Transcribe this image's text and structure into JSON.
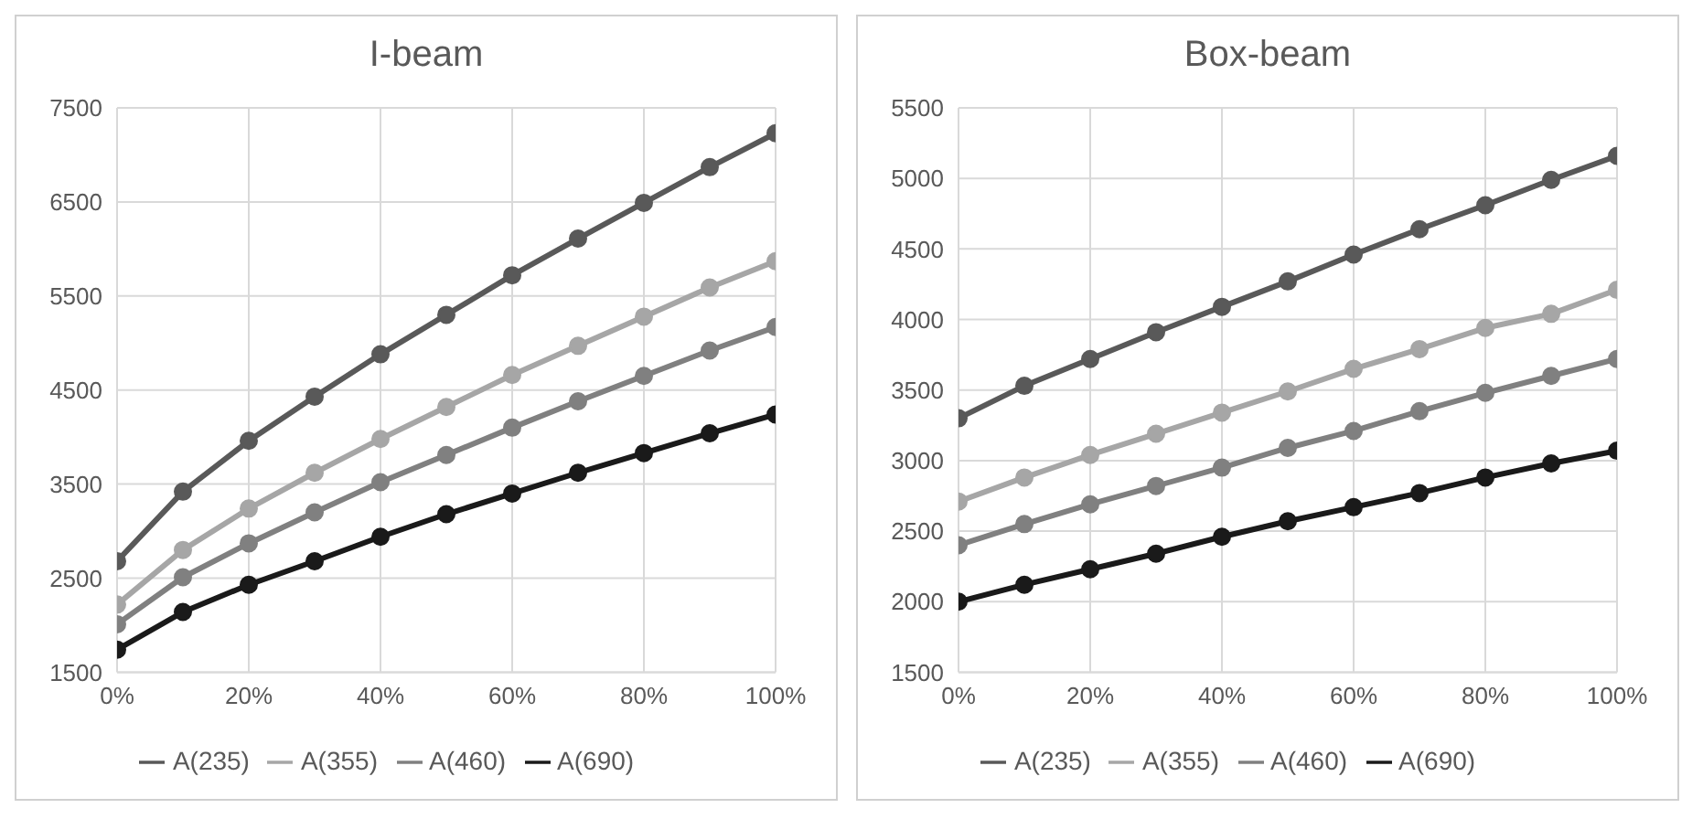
{
  "chart_data": [
    {
      "type": "line",
      "title": "I-beam",
      "x": [
        0,
        10,
        20,
        30,
        40,
        50,
        60,
        70,
        80,
        90,
        100
      ],
      "xlim": [
        0,
        100
      ],
      "xticks": [
        {
          "value": 0,
          "label": "0%"
        },
        {
          "value": 20,
          "label": "20%"
        },
        {
          "value": 40,
          "label": "40%"
        },
        {
          "value": 60,
          "label": "60%"
        },
        {
          "value": 80,
          "label": "80%"
        },
        {
          "value": 100,
          "label": "100%"
        }
      ],
      "ylim": [
        1500,
        7500
      ],
      "yticks": [
        1500,
        2500,
        3500,
        4500,
        5500,
        6500,
        7500
      ],
      "grid": true,
      "legend": "bottom",
      "marker": "circle",
      "line_style": "solid",
      "series": [
        {
          "name": "A(235)",
          "color": "#595959",
          "values": [
            2680,
            3420,
            3960,
            4430,
            4880,
            5300,
            5720,
            6110,
            6490,
            6870,
            7230
          ]
        },
        {
          "name": "A(355)",
          "color": "#a6a6a6",
          "values": [
            2220,
            2800,
            3240,
            3620,
            3980,
            4320,
            4660,
            4970,
            5280,
            5590,
            5870
          ]
        },
        {
          "name": "A(460)",
          "color": "#808080",
          "values": [
            2010,
            2510,
            2870,
            3200,
            3520,
            3810,
            4100,
            4380,
            4650,
            4920,
            5170
          ]
        },
        {
          "name": "A(690)",
          "color": "#1a1a1a",
          "values": [
            1740,
            2140,
            2430,
            2680,
            2940,
            3180,
            3400,
            3620,
            3830,
            4040,
            4240
          ]
        }
      ]
    },
    {
      "type": "line",
      "title": "Box-beam",
      "x": [
        0,
        10,
        20,
        30,
        40,
        50,
        60,
        70,
        80,
        90,
        100
      ],
      "xlim": [
        0,
        100
      ],
      "xticks": [
        {
          "value": 0,
          "label": "0%"
        },
        {
          "value": 20,
          "label": "20%"
        },
        {
          "value": 40,
          "label": "40%"
        },
        {
          "value": 60,
          "label": "60%"
        },
        {
          "value": 80,
          "label": "80%"
        },
        {
          "value": 100,
          "label": "100%"
        }
      ],
      "ylim": [
        1500,
        5500
      ],
      "yticks": [
        1500,
        2000,
        2500,
        3000,
        3500,
        4000,
        4500,
        5000,
        5500
      ],
      "grid": true,
      "legend": "bottom",
      "marker": "circle",
      "line_style": "solid",
      "series": [
        {
          "name": "A(235)",
          "color": "#595959",
          "values": [
            3300,
            3530,
            3720,
            3910,
            4090,
            4270,
            4460,
            4640,
            4810,
            4990,
            5160
          ]
        },
        {
          "name": "A(355)",
          "color": "#a6a6a6",
          "values": [
            2710,
            2880,
            3040,
            3190,
            3340,
            3490,
            3650,
            3790,
            3940,
            4040,
            4210
          ]
        },
        {
          "name": "A(460)",
          "color": "#808080",
          "values": [
            2400,
            2550,
            2690,
            2820,
            2950,
            3090,
            3210,
            3350,
            3480,
            3600,
            3720
          ]
        },
        {
          "name": "A(690)",
          "color": "#1a1a1a",
          "values": [
            2000,
            2120,
            2230,
            2340,
            2460,
            2570,
            2670,
            2770,
            2880,
            2980,
            3070
          ]
        }
      ]
    }
  ]
}
